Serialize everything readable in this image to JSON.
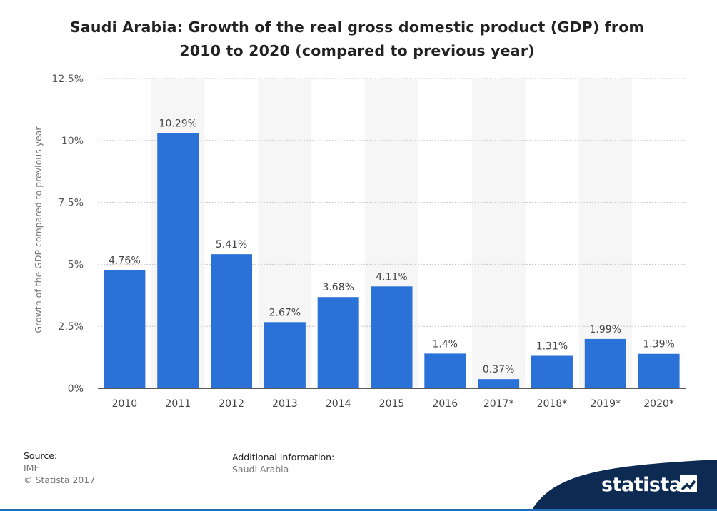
{
  "chart_data": {
    "type": "bar",
    "title": "Saudi Arabia: Growth of the real gross domestic product (GDP) from 2010 to 2020 (compared to previous year)",
    "title_lines": [
      "Saudi Arabia: Growth of the real gross domestic product (GDP) from",
      "2010 to 2020 (compared to previous year)"
    ],
    "xlabel": "",
    "ylabel": "Growth of the GDP compared to previous year",
    "categories": [
      "2010",
      "2011",
      "2012",
      "2013",
      "2014",
      "2015",
      "2016",
      "2017*",
      "2018*",
      "2019*",
      "2020*"
    ],
    "values": [
      4.76,
      10.29,
      5.41,
      2.67,
      3.68,
      4.11,
      1.4,
      0.37,
      1.31,
      1.99,
      1.39
    ],
    "value_labels": [
      "4.76%",
      "10.29%",
      "5.41%",
      "2.67%",
      "3.68%",
      "4.11%",
      "1.4%",
      "0.37%",
      "1.31%",
      "1.99%",
      "1.39%"
    ],
    "ylim": [
      0,
      12.5
    ],
    "yticks": [
      0,
      2.5,
      5,
      7.5,
      10,
      12.5
    ],
    "ytick_labels": [
      "0%",
      "2.5%",
      "5%",
      "7.5%",
      "10%",
      "12.5%"
    ],
    "grid": true,
    "bar_color": "#2a72d8"
  },
  "footer": {
    "source_heading": "Source:",
    "source_name": "IMF",
    "copyright": "© Statista 2017",
    "additional_heading": "Additional Information:",
    "additional_text": "Saudi Arabia"
  },
  "brand": {
    "logo_text": "statista",
    "band_color": "#0d2a52",
    "accent": "#1a6fb8"
  }
}
